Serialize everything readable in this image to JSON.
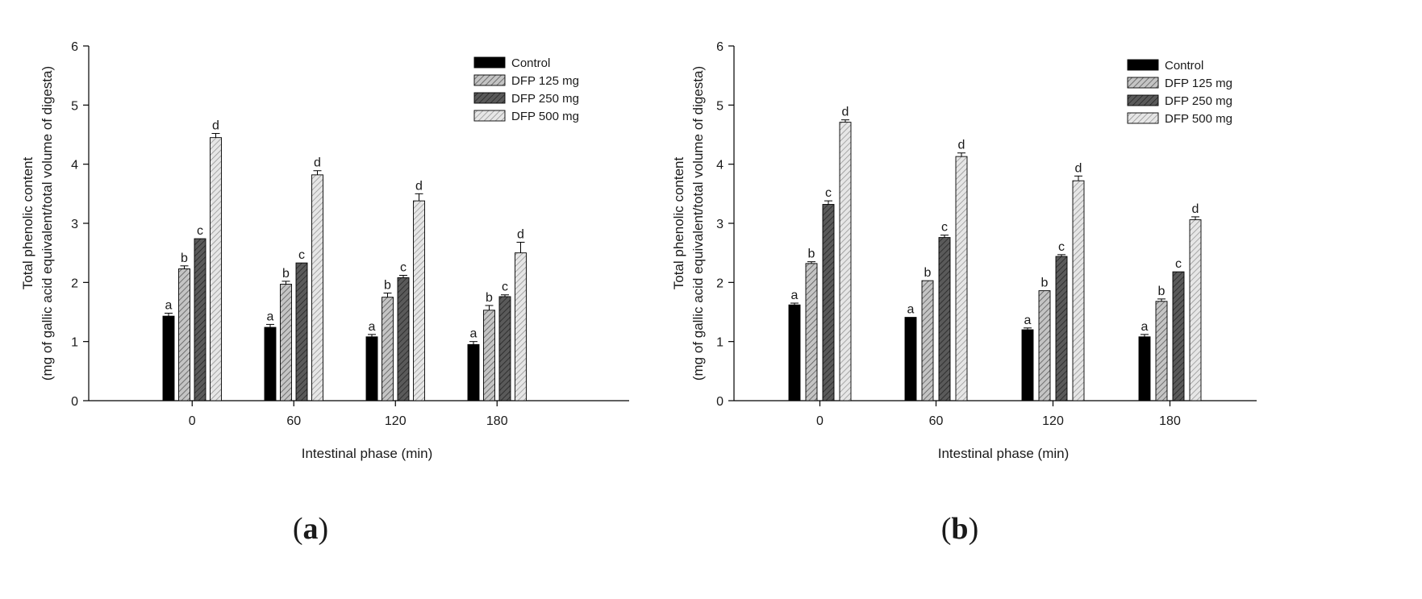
{
  "figure": {
    "panel_labels": [
      {
        "open": "(",
        "letter": "a",
        "close": ")"
      },
      {
        "open": "(",
        "letter": "b",
        "close": ")"
      }
    ]
  },
  "chart_data": [
    {
      "type": "bar",
      "panel": "a",
      "title": "",
      "xlabel": "Intestinal phase (min)",
      "ylabel_line1": "Total phenolic content",
      "ylabel_line2": "(mg of gallic acid equivalent/total volume of digesta)",
      "ylim": [
        0,
        6
      ],
      "yticks": [
        "0",
        "1",
        "2",
        "3",
        "4",
        "5",
        "6"
      ],
      "categories": [
        "0",
        "60",
        "120",
        "180"
      ],
      "legend_position": "top-right",
      "series": [
        {
          "name": "Control",
          "fill": "#000000",
          "pattern": "solid",
          "values": [
            1.43,
            1.24,
            1.08,
            0.95
          ],
          "errors": [
            0.05,
            0.05,
            0.04,
            0.05
          ],
          "letters": [
            "a",
            "a",
            "a",
            "a"
          ]
        },
        {
          "name": "DFP 125 mg",
          "fill": "#b0b0b0",
          "pattern": "hatch-light",
          "values": [
            2.23,
            1.97,
            1.75,
            1.53
          ],
          "errors": [
            0.05,
            0.05,
            0.07,
            0.08
          ],
          "letters": [
            "b",
            "b",
            "b",
            "b"
          ]
        },
        {
          "name": "DFP 250 mg",
          "fill": "#555555",
          "pattern": "hatch-dark",
          "values": [
            2.74,
            2.33,
            2.08,
            1.76
          ],
          "errors": [
            0.0,
            0.0,
            0.04,
            0.03
          ],
          "letters": [
            "c",
            "c",
            "c",
            "c"
          ]
        },
        {
          "name": "DFP 500 mg",
          "fill": "#d4d4d4",
          "pattern": "hatch-pale",
          "values": [
            4.45,
            3.82,
            3.38,
            2.5
          ],
          "errors": [
            0.07,
            0.07,
            0.12,
            0.18
          ],
          "letters": [
            "d",
            "d",
            "d",
            "d"
          ]
        }
      ]
    },
    {
      "type": "bar",
      "panel": "b",
      "title": "",
      "xlabel": "Intestinal phase (min)",
      "ylabel_line1": "Total phenolic content",
      "ylabel_line2": "(mg of gallic acid equivalent/total volume of digesta)",
      "ylim": [
        0,
        6
      ],
      "yticks": [
        "0",
        "1",
        "2",
        "3",
        "4",
        "5",
        "6"
      ],
      "categories": [
        "0",
        "60",
        "120",
        "180"
      ],
      "legend_position": "top-right",
      "series": [
        {
          "name": "Control",
          "fill": "#000000",
          "pattern": "solid",
          "values": [
            1.62,
            1.41,
            1.2,
            1.08
          ],
          "errors": [
            0.03,
            0.0,
            0.03,
            0.04
          ],
          "letters": [
            "a",
            "a",
            "a",
            "a"
          ]
        },
        {
          "name": "DFP 125 mg",
          "fill": "#b0b0b0",
          "pattern": "hatch-light",
          "values": [
            2.32,
            2.03,
            1.86,
            1.68
          ],
          "errors": [
            0.03,
            0.0,
            0.0,
            0.04
          ],
          "letters": [
            "b",
            "b",
            "b",
            "b"
          ]
        },
        {
          "name": "DFP 250 mg",
          "fill": "#555555",
          "pattern": "hatch-dark",
          "values": [
            3.32,
            2.76,
            2.44,
            2.18
          ],
          "errors": [
            0.06,
            0.04,
            0.03,
            0.0
          ],
          "letters": [
            "c",
            "c",
            "c",
            "c"
          ]
        },
        {
          "name": "DFP 500 mg",
          "fill": "#d4d4d4",
          "pattern": "hatch-pale",
          "values": [
            4.71,
            4.13,
            3.72,
            3.06
          ],
          "errors": [
            0.04,
            0.06,
            0.08,
            0.05
          ],
          "letters": [
            "d",
            "d",
            "d",
            "d"
          ]
        }
      ]
    }
  ]
}
